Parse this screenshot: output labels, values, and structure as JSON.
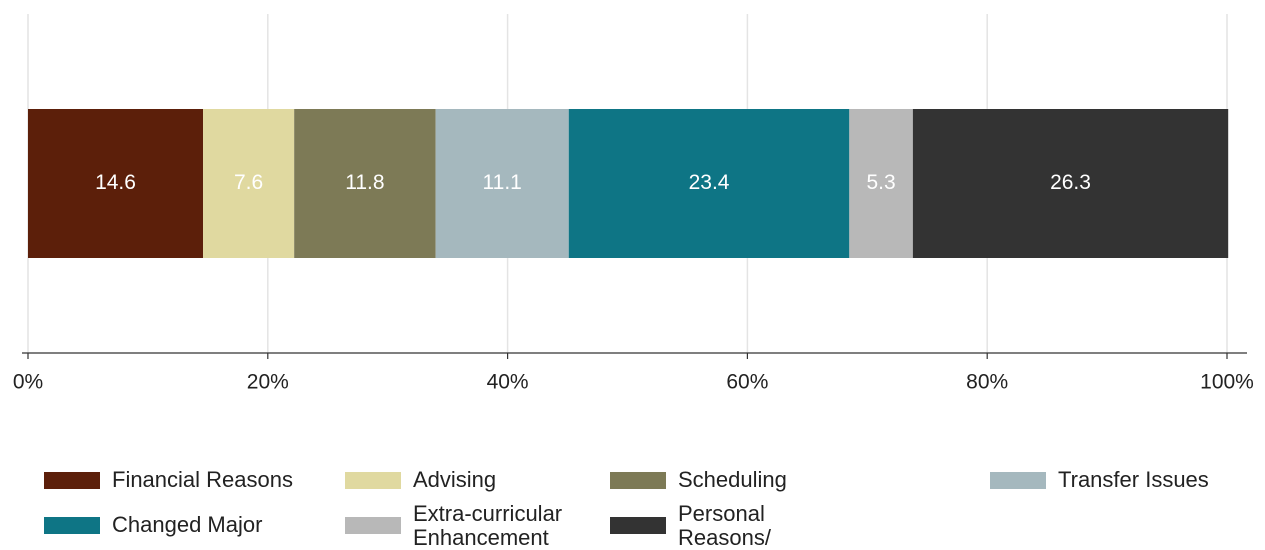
{
  "chart_data": {
    "type": "bar",
    "orientation": "horizontal",
    "stacked": true,
    "series": [
      {
        "name": "Financial Reasons",
        "color": "#5c1f0a",
        "values": [
          14.6
        ]
      },
      {
        "name": "Advising",
        "color": "#e0d9a0",
        "values": [
          7.6
        ]
      },
      {
        "name": "Scheduling",
        "color": "#7d7a56",
        "values": [
          11.8
        ]
      },
      {
        "name": "Transfer Issues",
        "color": "#a5b8be",
        "values": [
          11.1
        ]
      },
      {
        "name": "Changed Major",
        "color": "#0e7585",
        "values": [
          23.4
        ]
      },
      {
        "name": "Extra-curricular Enhancement",
        "color": "#b8b8b8",
        "values": [
          5.3
        ]
      },
      {
        "name": "Personal Reasons/ Other",
        "color": "#333333",
        "values": [
          26.3
        ]
      }
    ],
    "xlim": [
      0,
      100
    ],
    "xticks": [
      {
        "value": 0,
        "label": "0%"
      },
      {
        "value": 20,
        "label": "20%"
      },
      {
        "value": 40,
        "label": "40%"
      },
      {
        "value": 60,
        "label": "60%"
      },
      {
        "value": 80,
        "label": "80%"
      },
      {
        "value": 100,
        "label": "100%"
      }
    ],
    "grid": true,
    "legend": "bottom"
  }
}
